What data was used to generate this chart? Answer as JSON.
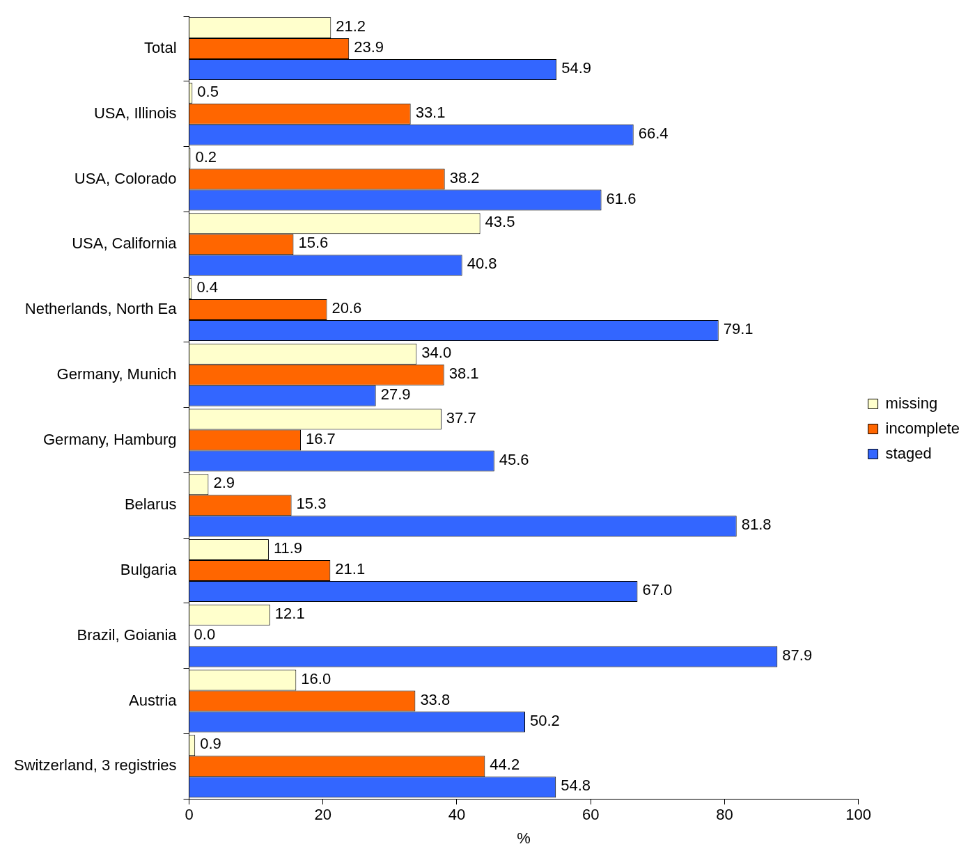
{
  "chart_data": {
    "type": "bar",
    "orientation": "horizontal",
    "xlabel": "%",
    "categories": [
      "Total",
      "USA, Illinois",
      "USA, Colorado",
      "USA, California",
      "Netherlands, North Ea",
      "Germany, Munich",
      "Germany, Hamburg",
      "Belarus",
      "Bulgaria",
      "Brazil, Goiania",
      "Austria",
      "Switzerland, 3 registries"
    ],
    "series": [
      {
        "name": "missing",
        "color": "#ffffcc",
        "values": [
          21.2,
          0.5,
          0.2,
          43.5,
          0.4,
          34.0,
          37.7,
          2.9,
          11.9,
          12.1,
          16.0,
          0.9
        ],
        "value_labels": [
          "21.2",
          "0.5",
          "0.2",
          "43.5",
          "0.4",
          "34.0",
          "37.7",
          "2.9",
          "11.9",
          "12.1",
          "16.0",
          "0.9"
        ]
      },
      {
        "name": "incomplete",
        "color": "#ff6600",
        "values": [
          23.9,
          33.1,
          38.2,
          15.6,
          20.6,
          38.1,
          16.7,
          15.3,
          21.1,
          0.0,
          33.8,
          44.2
        ],
        "value_labels": [
          "23.9",
          "33.1",
          "38.2",
          "15.6",
          "20.6",
          "38.1",
          "16.7",
          "15.3",
          "21.1",
          "0.0",
          "33.8",
          "44.2"
        ]
      },
      {
        "name": "staged",
        "color": "#3366ff",
        "values": [
          54.9,
          66.4,
          61.6,
          40.8,
          79.1,
          27.9,
          45.6,
          81.8,
          67.0,
          87.9,
          50.2,
          54.8
        ],
        "value_labels": [
          "54.9",
          "66.4",
          "61.6",
          "40.8",
          "79.1",
          "27.9",
          "45.6",
          "81.8",
          "67.0",
          "87.9",
          "50.2",
          "54.8"
        ]
      }
    ],
    "xlim": [
      0,
      100
    ],
    "xticks": [
      0,
      20,
      40,
      60,
      80,
      100
    ],
    "grid": false,
    "legend": "right"
  }
}
